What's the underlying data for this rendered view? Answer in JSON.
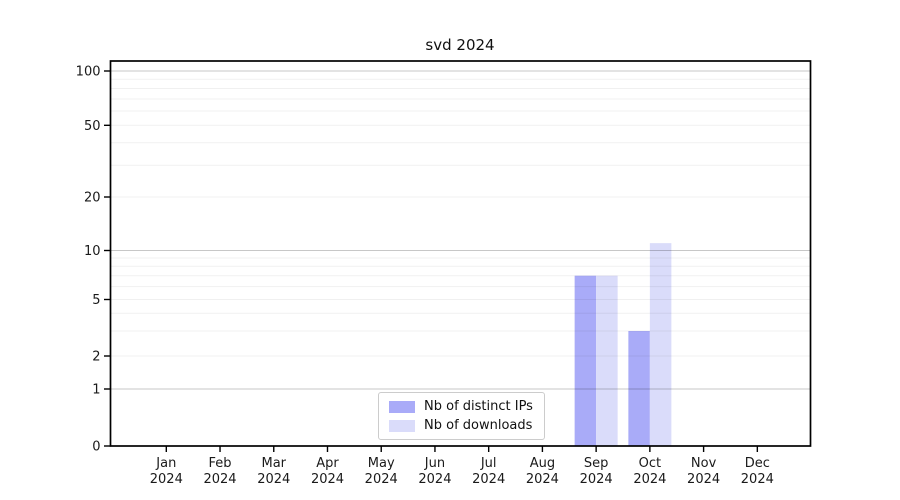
{
  "chart_data": {
    "type": "bar",
    "title": "svd 2024",
    "categories": [
      "Jan",
      "Feb",
      "Mar",
      "Apr",
      "May",
      "Jun",
      "Jul",
      "Aug",
      "Sep",
      "Oct",
      "Nov",
      "Dec"
    ],
    "year": "2024",
    "series": [
      {
        "name": "Nb of distinct IPs",
        "color": "#a9abf8",
        "values": [
          0,
          0,
          0,
          0,
          0,
          0,
          0,
          0,
          7,
          3,
          0,
          0
        ]
      },
      {
        "name": "Nb of downloads",
        "color": "#dadcfa",
        "values": [
          0,
          0,
          0,
          0,
          0,
          0,
          0,
          0,
          7,
          11,
          0,
          0
        ]
      }
    ],
    "y_axis": {
      "scale": "symlog",
      "major_ticks": [
        0,
        1,
        2,
        5,
        10,
        20,
        50,
        100
      ],
      "minor_ticks": [
        3,
        4,
        6,
        7,
        8,
        9,
        30,
        40,
        60,
        70,
        80,
        90
      ],
      "range": [
        0,
        100
      ]
    },
    "legend": {
      "position": "lower center"
    },
    "grid": true,
    "colors": {
      "spine": "#000000",
      "text": "#1a1a1a",
      "grid_decade": "rgba(0,0,0,0.22)",
      "grid_faint": "rgba(0,0,0,0.06)"
    }
  }
}
